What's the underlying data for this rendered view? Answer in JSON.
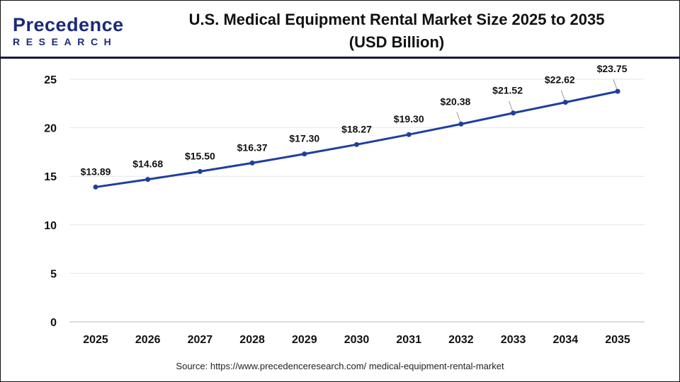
{
  "brand": {
    "logo_top": "Precedence",
    "logo_bottom": "RESEARCH"
  },
  "title_line1": "U.S. Medical Equipment Rental Market Size 2025 to 2035",
  "title_line2": "(USD Billion)",
  "source": "Source: https://www.precedenceresearch.com/ medical-equipment-rental-market",
  "colors": {
    "line": "#1f3f9e",
    "frame": "#12163f"
  },
  "chart_data": {
    "type": "line",
    "categories": [
      "2025",
      "2026",
      "2027",
      "2028",
      "2029",
      "2030",
      "2031",
      "2032",
      "2033",
      "2034",
      "2035"
    ],
    "values": [
      13.89,
      14.68,
      15.5,
      16.37,
      17.3,
      18.27,
      19.3,
      20.38,
      21.52,
      22.62,
      23.75
    ],
    "data_labels": [
      "$13.89",
      "$14.68",
      "$15.50",
      "$16.37",
      "$17.30",
      "$18.27",
      "$19.30",
      "$20.38",
      "$21.52",
      "$22.62",
      "$23.75"
    ],
    "ylim": [
      0,
      25
    ],
    "yticks": [
      0,
      5,
      10,
      15,
      20,
      25
    ],
    "grid": true,
    "xlabel": "",
    "ylabel": ""
  }
}
